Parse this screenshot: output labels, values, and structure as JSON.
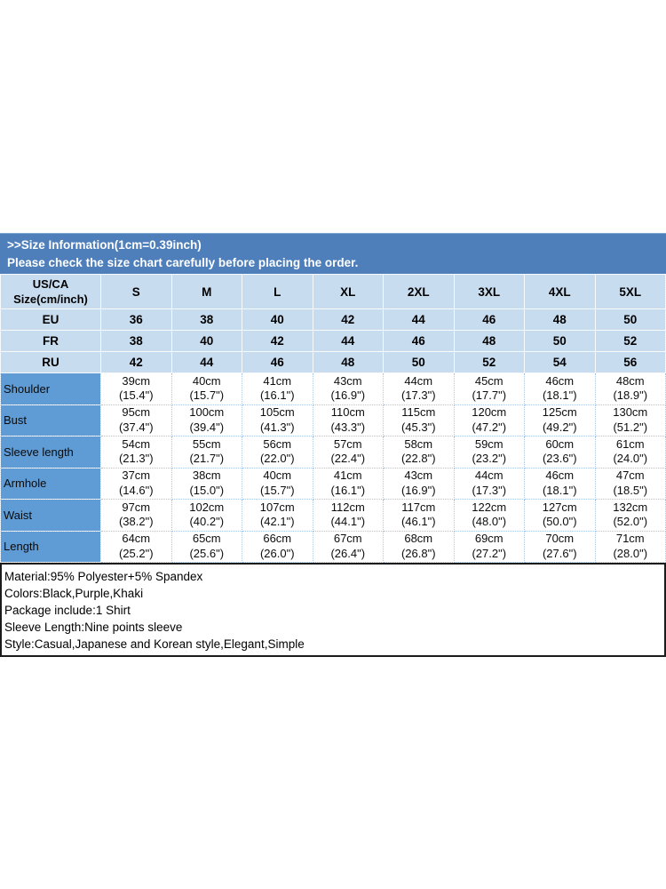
{
  "banner": {
    "line1": ">>Size Information(1cm=0.39inch)",
    "line2": "Please check the size chart carefully before placing the order."
  },
  "size_table": {
    "corner_header": {
      "line1": "US/CA",
      "line2": "Size(cm/inch)"
    },
    "sizes": [
      "S",
      "M",
      "L",
      "XL",
      "2XL",
      "3XL",
      "4XL",
      "5XL"
    ],
    "region_rows": [
      {
        "label": "EU",
        "values": [
          "36",
          "38",
          "40",
          "42",
          "44",
          "46",
          "48",
          "50"
        ]
      },
      {
        "label": "FR",
        "values": [
          "38",
          "40",
          "42",
          "44",
          "46",
          "48",
          "50",
          "52"
        ]
      },
      {
        "label": "RU",
        "values": [
          "42",
          "44",
          "46",
          "48",
          "50",
          "52",
          "54",
          "56"
        ]
      }
    ],
    "measurement_rows": [
      {
        "label": "Shoulder",
        "values": [
          {
            "cm": "39cm",
            "inch": "(15.4\")"
          },
          {
            "cm": "40cm",
            "inch": "(15.7\")"
          },
          {
            "cm": "41cm",
            "inch": "(16.1\")"
          },
          {
            "cm": "43cm",
            "inch": "(16.9\")"
          },
          {
            "cm": "44cm",
            "inch": "(17.3\")"
          },
          {
            "cm": "45cm",
            "inch": "(17.7\")"
          },
          {
            "cm": "46cm",
            "inch": "(18.1\")"
          },
          {
            "cm": "48cm",
            "inch": "(18.9\")"
          }
        ]
      },
      {
        "label": "Bust",
        "values": [
          {
            "cm": "95cm",
            "inch": "(37.4\")"
          },
          {
            "cm": "100cm",
            "inch": "(39.4\")"
          },
          {
            "cm": "105cm",
            "inch": "(41.3\")"
          },
          {
            "cm": "110cm",
            "inch": "(43.3\")"
          },
          {
            "cm": "115cm",
            "inch": "(45.3\")"
          },
          {
            "cm": "120cm",
            "inch": "(47.2\")"
          },
          {
            "cm": "125cm",
            "inch": "(49.2\")"
          },
          {
            "cm": "130cm",
            "inch": "(51.2\")"
          }
        ]
      },
      {
        "label": "Sleeve length",
        "values": [
          {
            "cm": "54cm",
            "inch": "(21.3\")"
          },
          {
            "cm": "55cm",
            "inch": "(21.7\")"
          },
          {
            "cm": "56cm",
            "inch": "(22.0\")"
          },
          {
            "cm": "57cm",
            "inch": "(22.4\")"
          },
          {
            "cm": "58cm",
            "inch": "(22.8\")"
          },
          {
            "cm": "59cm",
            "inch": "(23.2\")"
          },
          {
            "cm": "60cm",
            "inch": "(23.6\")"
          },
          {
            "cm": "61cm",
            "inch": "(24.0\")"
          }
        ]
      },
      {
        "label": "Armhole",
        "values": [
          {
            "cm": "37cm",
            "inch": "(14.6\")"
          },
          {
            "cm": "38cm",
            "inch": "(15.0\")"
          },
          {
            "cm": "40cm",
            "inch": "(15.7\")"
          },
          {
            "cm": "41cm",
            "inch": "(16.1\")"
          },
          {
            "cm": "43cm",
            "inch": "(16.9\")"
          },
          {
            "cm": "44cm",
            "inch": "(17.3\")"
          },
          {
            "cm": "46cm",
            "inch": "(18.1\")"
          },
          {
            "cm": "47cm",
            "inch": "(18.5\")"
          }
        ]
      },
      {
        "label": "Waist",
        "values": [
          {
            "cm": "97cm",
            "inch": "(38.2\")"
          },
          {
            "cm": "102cm",
            "inch": "(40.2\")"
          },
          {
            "cm": "107cm",
            "inch": "(42.1\")"
          },
          {
            "cm": "112cm",
            "inch": "(44.1\")"
          },
          {
            "cm": "117cm",
            "inch": "(46.1\")"
          },
          {
            "cm": "122cm",
            "inch": "(48.0\")"
          },
          {
            "cm": "127cm",
            "inch": "(50.0\")"
          },
          {
            "cm": "132cm",
            "inch": "(52.0\")"
          }
        ]
      },
      {
        "label": "Length",
        "values": [
          {
            "cm": "64cm",
            "inch": "(25.2\")"
          },
          {
            "cm": "65cm",
            "inch": "(25.6\")"
          },
          {
            "cm": "66cm",
            "inch": "(26.0\")"
          },
          {
            "cm": "67cm",
            "inch": "(26.4\")"
          },
          {
            "cm": "68cm",
            "inch": "(26.8\")"
          },
          {
            "cm": "69cm",
            "inch": "(27.2\")"
          },
          {
            "cm": "70cm",
            "inch": "(27.6\")"
          },
          {
            "cm": "71cm",
            "inch": "(28.0\")"
          }
        ]
      }
    ]
  },
  "product_info": {
    "lines": [
      "Material:95% Polyester+5% Spandex",
      "Colors:Black,Purple,Khaki",
      "Package include:1 Shirt",
      "Sleeve Length:Nine points sleeve",
      "Style:Casual,Japanese and Korean style,Elegant,Simple"
    ]
  },
  "colors": {
    "banner_bg": "#4e7fbb",
    "header_row_bg": "#c8dcf0",
    "label_column_bg": "#5f9cd6",
    "grid_line_light": "#eef5fc",
    "grid_line_blue": "#a9c7e5",
    "info_box_border": "#1b1b1b"
  }
}
